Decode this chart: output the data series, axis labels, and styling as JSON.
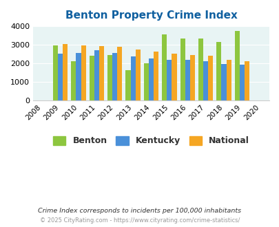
{
  "title": "Benton Property Crime Index",
  "years": [
    2008,
    2009,
    2010,
    2011,
    2012,
    2013,
    2014,
    2015,
    2016,
    2017,
    2018,
    2019,
    2020
  ],
  "benton": [
    null,
    2950,
    2100,
    2400,
    2450,
    1620,
    2000,
    3560,
    3330,
    3330,
    3160,
    3750,
    null
  ],
  "kentucky": [
    null,
    2530,
    2560,
    2700,
    2560,
    2380,
    2260,
    2190,
    2180,
    2120,
    1970,
    1920,
    null
  ],
  "national": [
    null,
    3050,
    2960,
    2920,
    2870,
    2750,
    2610,
    2510,
    2460,
    2390,
    2180,
    2110,
    null
  ],
  "bar_colors": {
    "benton": "#8DC63F",
    "kentucky": "#4A90D9",
    "national": "#F5A623"
  },
  "ylim": [
    0,
    4000
  ],
  "yticks": [
    0,
    1000,
    2000,
    3000,
    4000
  ],
  "bg_color": "#E8F4F4",
  "title_color": "#1060A0",
  "legend_labels": [
    "Benton",
    "Kentucky",
    "National"
  ],
  "footnote1": "Crime Index corresponds to incidents per 100,000 inhabitants",
  "footnote2": "© 2025 CityRating.com - https://www.cityrating.com/crime-statistics/",
  "footnote1_color": "#333333",
  "footnote2_color": "#999999"
}
